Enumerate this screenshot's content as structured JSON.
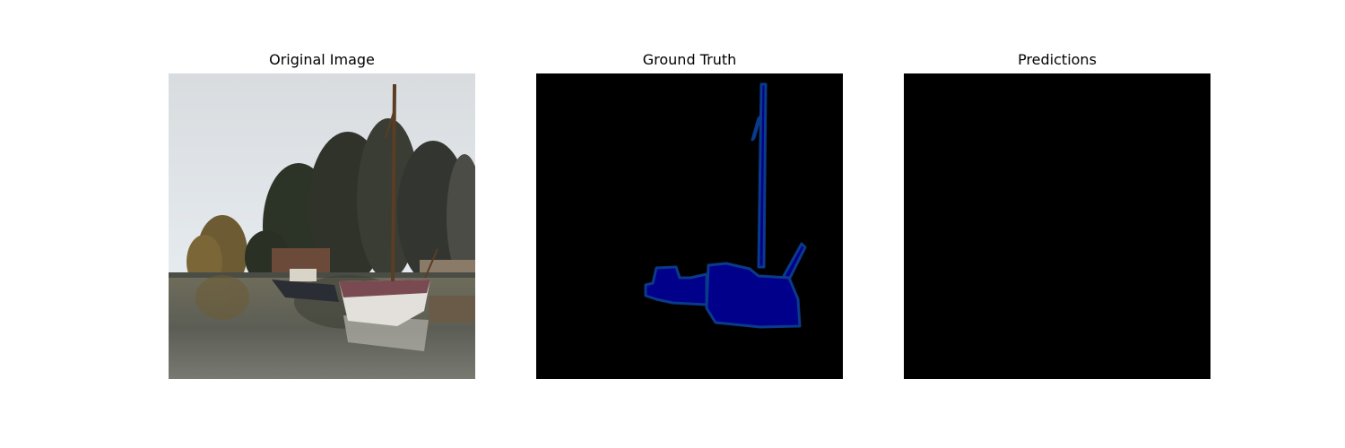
{
  "panels": {
    "original": {
      "title": "Original Image"
    },
    "ground_truth": {
      "title": "Ground Truth",
      "mask_fill": "#00008b",
      "mask_outline": "#0a3a8a"
    },
    "predictions": {
      "title": "Predictions",
      "background": "#000000"
    }
  }
}
